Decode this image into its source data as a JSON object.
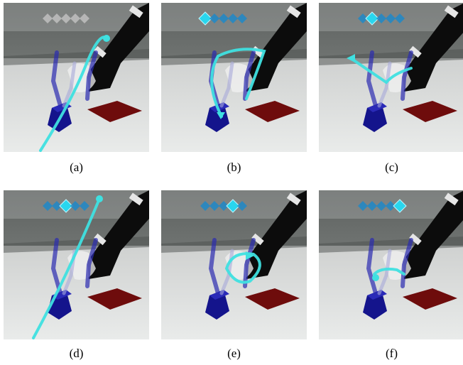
{
  "panels": [
    {
      "caption": "(a)",
      "active_diamond": -1,
      "diamonds_color": "#bfbfbf",
      "trajectory": "a"
    },
    {
      "caption": "(b)",
      "active_diamond": 0,
      "diamonds_color": "#1e88c8",
      "trajectory": "b"
    },
    {
      "caption": "(c)",
      "active_diamond": 1,
      "diamonds_color": "#1e88c8",
      "trajectory": "c"
    },
    {
      "caption": "(d)",
      "active_diamond": 2,
      "diamonds_color": "#1e88c8",
      "trajectory": "d"
    },
    {
      "caption": "(e)",
      "active_diamond": 3,
      "diamonds_color": "#1e88c8",
      "trajectory": "e"
    },
    {
      "caption": "(f)",
      "active_diamond": 4,
      "diamonds_color": "#1e88c8",
      "trajectory": "f"
    }
  ],
  "colors": {
    "trajectory": "#3fe0e0",
    "active_diamond": "#29d6ee",
    "robot": "#0c0c0c",
    "gripper_band": "#e6e6e6",
    "cube": "#14148c",
    "target_mat": "#6e0c0c",
    "floor": "#dcdedd",
    "wall": "#8e9290"
  }
}
